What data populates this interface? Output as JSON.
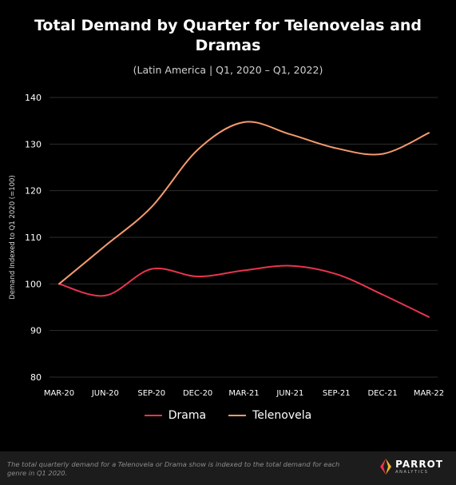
{
  "title": "Total Demand by Quarter for Telenovelas and Dramas",
  "subtitle": "(Latin America |  Q1, 2020 – Q1, 2022)",
  "footnote": "The total quarterly demand for a Telenovela or Drama show is indexed to the total demand for each genre in Q1 2020.",
  "brand": {
    "name": "PARROT",
    "sub": "ANALYTICS",
    "logo_icon": "parrot-logo-icon"
  },
  "colors": {
    "background": "#000000",
    "grid": "#2e2e2e",
    "drama": "#e8344f",
    "telenovela": "#f59a6e",
    "footer_bg": "#1c1c1c"
  },
  "chart_data": {
    "type": "line",
    "title": "Total Demand by Quarter for Telenovelas and Dramas",
    "subtitle": "(Latin America |  Q1, 2020 – Q1, 2022)",
    "xlabel": "",
    "ylabel": "Demand Indexed to Q1 2020 (=100)",
    "categories": [
      "MAR-20",
      "JUN-20",
      "SEP-20",
      "DEC-20",
      "MAR-21",
      "JUN-21",
      "SEP-21",
      "DEC-21",
      "MAR-22"
    ],
    "ylim": [
      80,
      140
    ],
    "yticks": [
      80,
      90,
      100,
      110,
      120,
      130,
      140
    ],
    "grid": true,
    "legend_position": "bottom",
    "series": [
      {
        "name": "Drama",
        "color": "#e8344f",
        "values": [
          100,
          97.5,
          103.2,
          101.6,
          102.9,
          103.9,
          102.1,
          97.7,
          92.9
        ]
      },
      {
        "name": "Telenovela",
        "color": "#f59a6e",
        "values": [
          100,
          108.2,
          116.5,
          128.8,
          134.7,
          132.1,
          129.1,
          127.9,
          132.4
        ]
      }
    ]
  }
}
